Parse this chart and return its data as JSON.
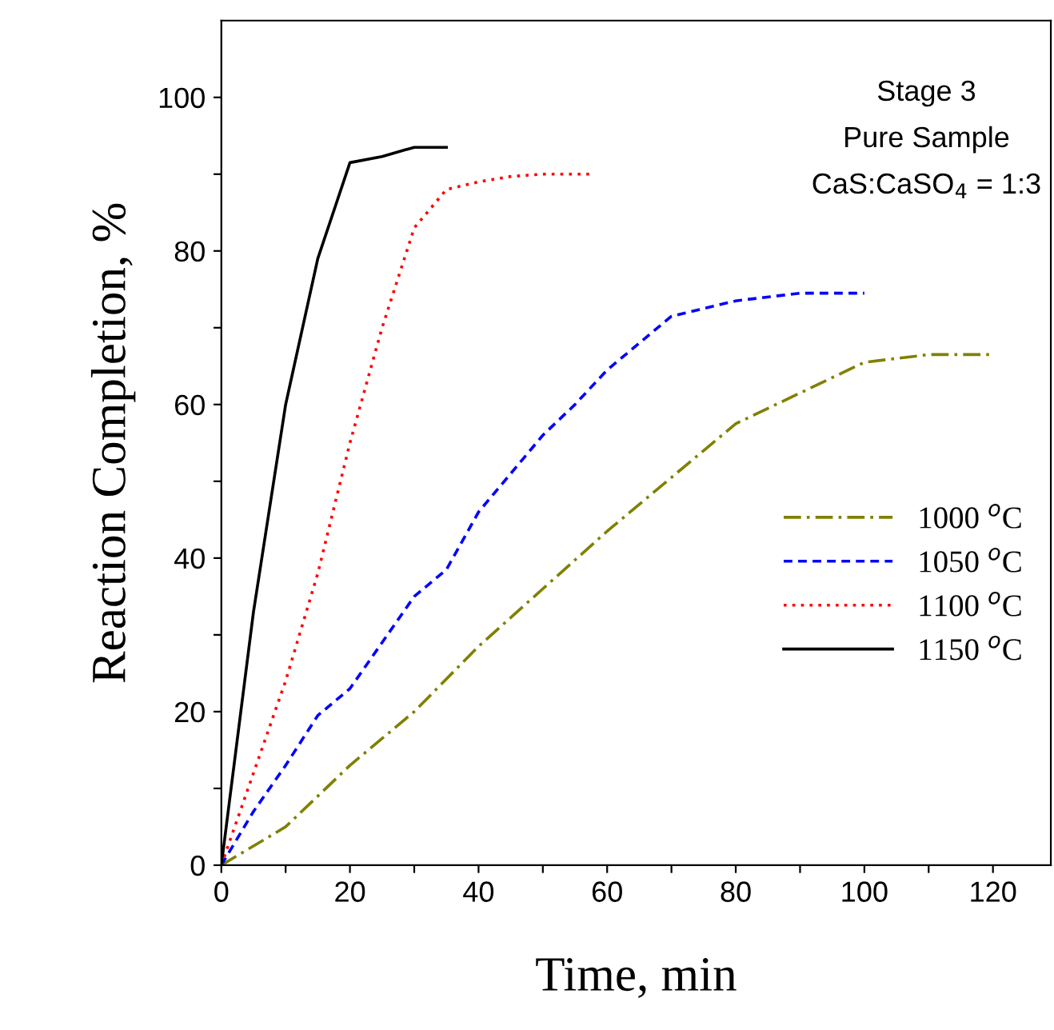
{
  "chart_data": {
    "type": "line",
    "xlabel": "Time, min",
    "ylabel": "Reaction Completion, %",
    "xlim": [
      0,
      129
    ],
    "ylim": [
      0,
      110
    ],
    "xticks": [
      0,
      {
        "value": 10,
        "label": null
      },
      20,
      {
        "value": 30,
        "label": null
      },
      40,
      {
        "value": 50,
        "label": null
      },
      60,
      {
        "value": 70,
        "label": null
      },
      80,
      {
        "value": 90,
        "label": null
      },
      100,
      {
        "value": 110,
        "label": null
      },
      120
    ],
    "yticks": [
      0,
      {
        "value": 10,
        "label": null
      },
      20,
      {
        "value": 30,
        "label": null
      },
      40,
      {
        "value": 50,
        "label": null
      },
      60,
      {
        "value": 70,
        "label": null
      },
      80,
      {
        "value": 90,
        "label": null
      },
      100
    ],
    "grid": false,
    "legend": "right",
    "marker": "none",
    "annotations": [
      "Stage 3",
      "Pure Sample",
      "CaS:CaSO$_{4}$ = 1:3"
    ],
    "series": [
      {
        "name": "1000 $^{o}$C",
        "color": "#808000",
        "line_style": "dashdot",
        "x": [
          0,
          10,
          20,
          30,
          40,
          50,
          60,
          70,
          80,
          90,
          100,
          110,
          120
        ],
        "values": [
          0,
          5,
          13,
          20,
          28.5,
          36,
          43.5,
          50.5,
          57.5,
          61.5,
          65.5,
          66.5,
          66.5
        ]
      },
      {
        "name": "1050 $^{o}$C",
        "color": "#0000ff",
        "line_style": "dashed",
        "x": [
          0,
          5,
          10,
          15,
          20,
          25,
          30,
          35,
          40,
          45,
          50,
          55,
          60,
          65,
          70,
          80,
          90,
          100
        ],
        "values": [
          0,
          7,
          13,
          19.5,
          23,
          29,
          35,
          38.5,
          46,
          51,
          56,
          60,
          64.5,
          68,
          71.5,
          73.5,
          74.5,
          74.5
        ]
      },
      {
        "name": "1100 $^{o}$C",
        "color": "#ff0000",
        "line_style": "dotted",
        "x": [
          0,
          5,
          10,
          15,
          20,
          25,
          30,
          35,
          40,
          45,
          50,
          58
        ],
        "values": [
          0,
          12,
          24,
          38,
          55,
          70,
          83,
          88,
          89,
          89.7,
          90,
          90
        ]
      },
      {
        "name": "1150 $^{o}$C",
        "color": "#000000",
        "line_style": "solid",
        "x": [
          0,
          5,
          10,
          15,
          20,
          25,
          30,
          35
        ],
        "values": [
          0,
          33,
          60,
          79,
          91.5,
          92.3,
          93.5,
          93.5
        ]
      }
    ]
  }
}
